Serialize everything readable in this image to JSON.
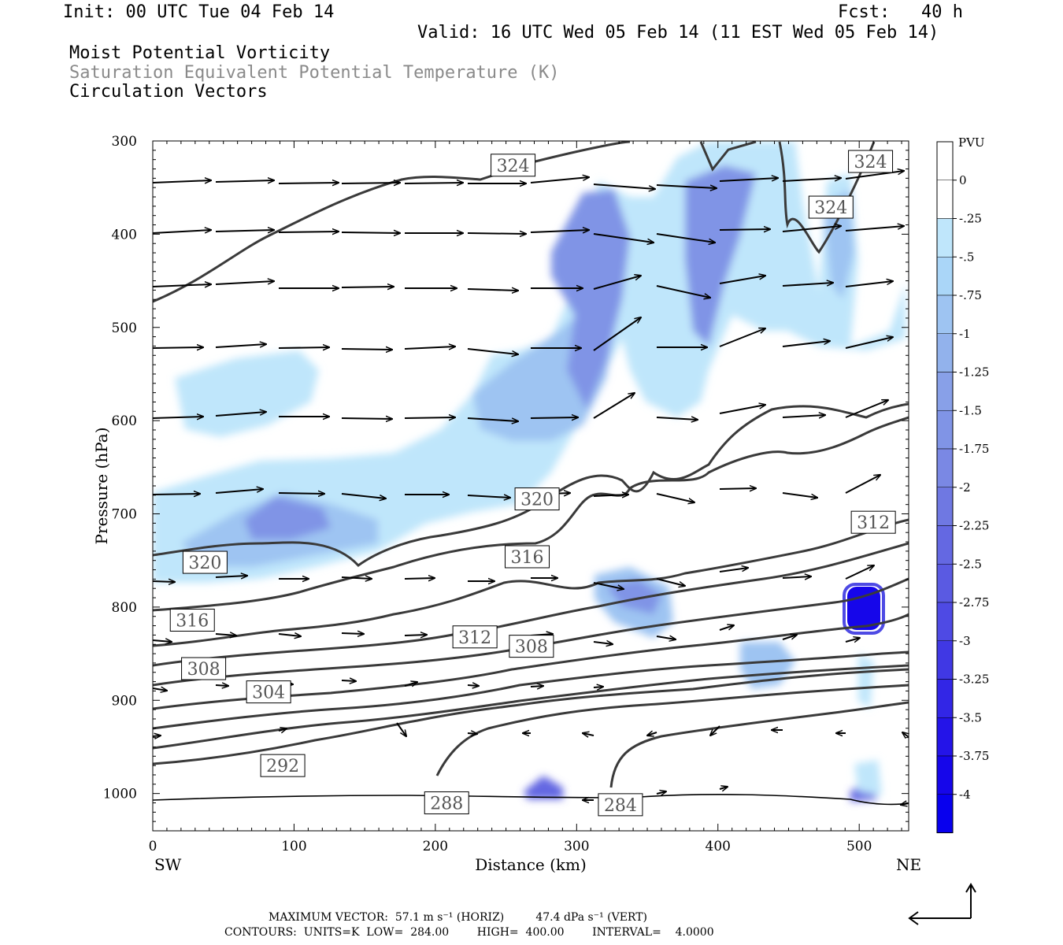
{
  "header": {
    "init": "Init: 00 UTC Tue 04 Feb 14",
    "fcst": "Fcst:   40 h",
    "valid": "Valid: 16 UTC Wed 05 Feb 14 (11 EST Wed 05 Feb 14)",
    "field1": "Moist Potential Vorticity",
    "field2": "Saturation Equivalent Potential Temperature (K)",
    "field3": "Circulation Vectors"
  },
  "footer": {
    "line1": "MAXIMUM VECTOR:  57.1 m s⁻¹ (HORIZ)         47.4 dPa s⁻¹ (VERT)",
    "line2": "CONTOURS:  UNITS=K  LOW=  284.00        HIGH=  400.00        INTERVAL=    4.0000"
  },
  "chart_data": {
    "type": "contour",
    "xlabel": "Distance (km)",
    "ylabel": "Pressure (hPa)",
    "x_left_label": "SW",
    "x_right_label": "NE",
    "xlim": [
      0,
      535
    ],
    "ylim": [
      1040,
      300
    ],
    "x_ticks": [
      0,
      100,
      200,
      300,
      400,
      500
    ],
    "y_ticks": [
      300,
      400,
      500,
      600,
      700,
      800,
      900,
      1000
    ],
    "colorbar": {
      "units": "PVU",
      "levels": [
        "0",
        "-.25",
        "-.5",
        "-.75",
        "-1",
        "-1.25",
        "-1.5",
        "-1.75",
        "-2",
        "-2.25",
        "-2.5",
        "-2.75",
        "-3",
        "-3.25",
        "-3.5",
        "-3.75",
        "-4"
      ],
      "colors": [
        "#ffffff",
        "#ffffff",
        "#bfe6fb",
        "#aad6f8",
        "#9ec4f2",
        "#92b2ec",
        "#88a0e8",
        "#8094e6",
        "#7a88e4",
        "#6f78e2",
        "#6468e2",
        "#5a5ae2",
        "#4e4ae4",
        "#4038e4",
        "#3226e6",
        "#2414e8",
        "#1606ea",
        "#0800ee"
      ]
    },
    "contour_labels": [
      {
        "text": "324",
        "x": 255,
        "p": 326
      },
      {
        "text": "324",
        "x": 508,
        "p": 322
      },
      {
        "text": "324",
        "x": 480,
        "p": 371
      },
      {
        "text": "320",
        "x": 272,
        "p": 684
      },
      {
        "text": "320",
        "x": 37,
        "p": 752
      },
      {
        "text": "316",
        "x": 265,
        "p": 746
      },
      {
        "text": "316",
        "x": 28,
        "p": 814
      },
      {
        "text": "312",
        "x": 510,
        "p": 709
      },
      {
        "text": "312",
        "x": 228,
        "p": 832
      },
      {
        "text": "308",
        "x": 268,
        "p": 842
      },
      {
        "text": "308",
        "x": 36,
        "p": 866
      },
      {
        "text": "304",
        "x": 82,
        "p": 891
      },
      {
        "text": "292",
        "x": 92,
        "p": 970
      },
      {
        "text": "288",
        "x": 208,
        "p": 1010
      },
      {
        "text": "284",
        "x": 331,
        "p": 1012
      }
    ]
  }
}
